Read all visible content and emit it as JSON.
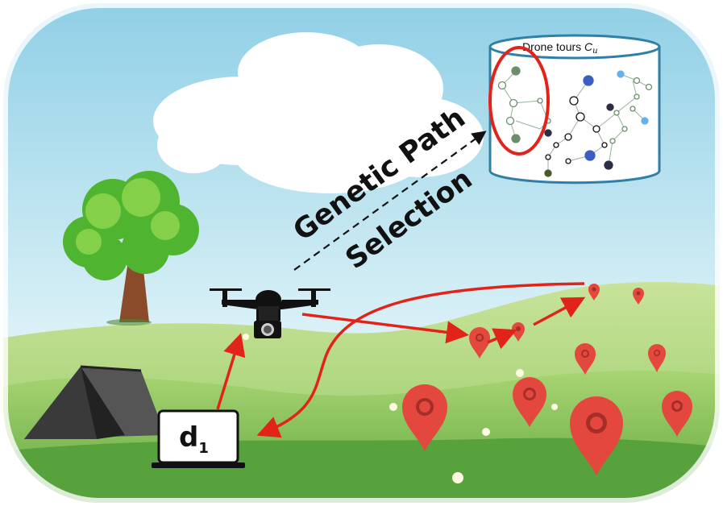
{
  "diagram": {
    "arrow_label_line1": "Genetic Path",
    "arrow_label_line2": "Selection",
    "database": {
      "title": "Drone tours ",
      "title_symbol": "C",
      "title_subscript": "u"
    },
    "device": {
      "label": "d",
      "label_subscript": "1"
    }
  },
  "colors": {
    "sky": "#a9d8ec",
    "grass_light": "#b9dc7c",
    "grass_dark": "#6ab04a",
    "path_red": "#e2231a",
    "pin_red": "#e4473d",
    "db_stroke": "#2f7fa6"
  },
  "icons": [
    "cloud-icon",
    "tree-icon",
    "tent-icon",
    "drone-icon",
    "laptop-icon",
    "database-icon",
    "location-pin-icon",
    "flower-icon"
  ]
}
